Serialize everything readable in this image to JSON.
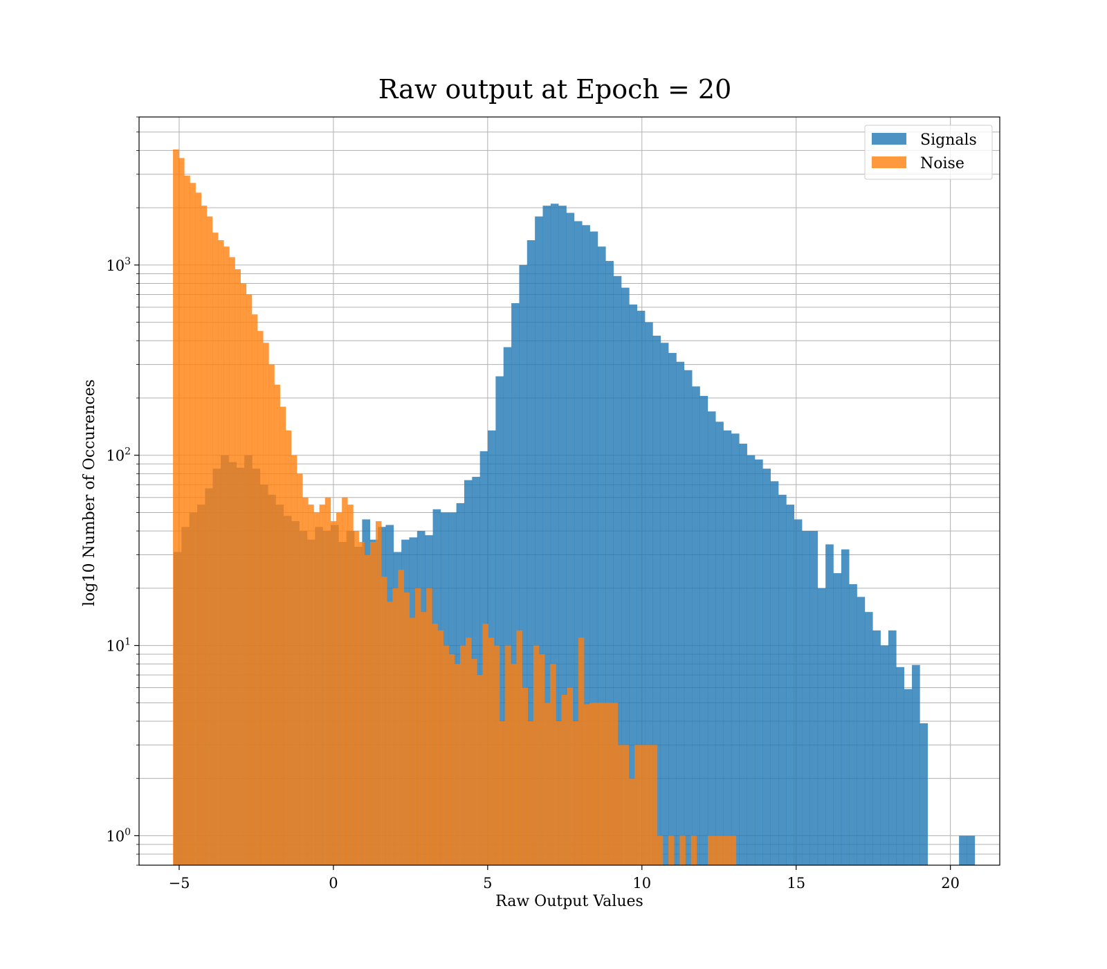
{
  "chart_data": {
    "type": "histogram",
    "title": "Raw output at Epoch = 20",
    "xlabel": "Raw Output Values",
    "ylabel": "log10 Number of Occurences",
    "xlim": [
      -6.3,
      21.6
    ],
    "ylim": [
      0.7,
      6000
    ],
    "yscale": "log",
    "grid": true,
    "legend": "top-right",
    "x_ticks": [
      -5,
      0,
      5,
      10,
      15,
      20
    ],
    "x_tick_labels": [
      "−5",
      "0",
      "5",
      "10",
      "15",
      "20"
    ],
    "y_ticks": [
      1,
      10,
      100,
      1000
    ],
    "y_tick_labels": [
      {
        "base": "10",
        "exp": "0"
      },
      {
        "base": "10",
        "exp": "1"
      },
      {
        "base": "10",
        "exp": "2"
      },
      {
        "base": "10",
        "exp": "3"
      }
    ],
    "series": [
      {
        "name": "Signals",
        "color": "#1f77b4",
        "opacity": 0.8,
        "bin_start": -5.18,
        "bin_width": 0.2546,
        "counts": [
          31,
          42,
          50,
          55,
          67,
          85,
          100,
          92,
          86,
          100,
          85,
          70,
          62,
          55,
          48,
          45,
          40,
          36,
          42,
          40,
          43,
          35,
          40,
          33,
          46,
          36,
          42,
          43,
          31,
          36,
          37,
          40,
          38,
          52,
          50,
          50,
          56,
          74,
          77,
          105,
          135,
          260,
          370,
          630,
          1000,
          1350,
          1800,
          2050,
          2100,
          2050,
          1880,
          1700,
          1620,
          1500,
          1250,
          1050,
          875,
          760,
          620,
          575,
          500,
          425,
          390,
          345,
          310,
          280,
          230,
          205,
          170,
          150,
          135,
          130,
          115,
          100,
          95,
          85,
          73,
          62,
          55,
          46,
          40,
          40,
          20,
          34,
          24,
          32,
          21,
          18,
          15,
          12,
          10,
          12,
          7.7,
          5.9,
          7.9,
          3.9,
          0,
          0,
          0,
          0,
          1,
          1
        ]
      },
      {
        "name": "Noise",
        "color": "#ff7f0e",
        "opacity": 0.8,
        "bin_start": -5.2,
        "bin_width": 0.1825,
        "counts": [
          4050,
          3650,
          2950,
          2700,
          2400,
          2050,
          1800,
          1480,
          1350,
          1250,
          1100,
          950,
          800,
          700,
          550,
          450,
          390,
          300,
          235,
          180,
          135,
          100,
          80,
          60,
          55,
          50,
          55,
          60,
          45,
          50,
          60,
          55,
          40,
          35,
          30,
          35,
          45,
          23,
          17,
          20,
          25,
          19,
          14,
          20,
          15,
          20,
          13,
          12,
          10,
          9,
          8,
          10,
          11,
          8.5,
          7,
          13,
          11,
          10,
          4,
          10,
          8,
          12,
          6,
          4,
          10,
          9,
          5,
          8,
          4,
          5.5,
          6,
          4,
          11,
          4.9,
          5,
          5,
          5,
          5,
          5,
          3,
          3,
          2,
          3,
          3,
          3,
          3,
          1,
          0,
          1,
          0,
          1,
          0,
          1,
          0,
          0,
          1,
          1,
          1,
          1,
          1
        ]
      }
    ]
  }
}
